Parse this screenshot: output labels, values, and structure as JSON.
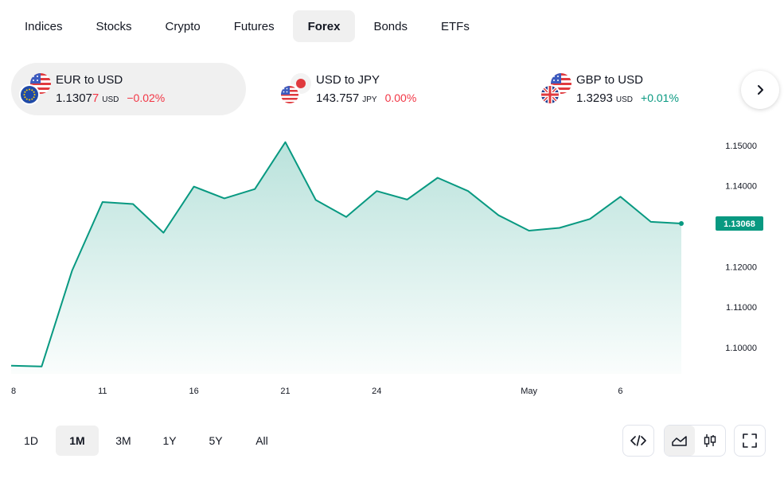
{
  "tabs": [
    {
      "label": "Indices",
      "active": false
    },
    {
      "label": "Stocks",
      "active": false
    },
    {
      "label": "Crypto",
      "active": false
    },
    {
      "label": "Futures",
      "active": false
    },
    {
      "label": "Forex",
      "active": true
    },
    {
      "label": "Bonds",
      "active": false
    },
    {
      "label": "ETFs",
      "active": false
    }
  ],
  "tickers": [
    {
      "name": "EUR to USD",
      "price_main": "1.1307",
      "price_last_digit": "7",
      "unit": "USD",
      "change": "−0.02%",
      "direction": "down",
      "base_flag": "eu-flag-icon",
      "quote_flag": "us-flag-icon"
    },
    {
      "name": "USD to JPY",
      "price_main": "143.757",
      "price_last_digit": "",
      "unit": "JPY",
      "change": "0.00%",
      "direction": "down",
      "base_flag": "us-flag-icon",
      "quote_flag": "jp-flag-icon"
    },
    {
      "name": "GBP to USD",
      "price_main": "1.3293",
      "price_last_digit": "",
      "unit": "USD",
      "change": "+0.01%",
      "direction": "up",
      "base_flag": "uk-flag-icon",
      "quote_flag": "us-flag-icon"
    }
  ],
  "next_icon": "chevron-right-icon",
  "chart_data": {
    "type": "area",
    "x": [
      "Apr 8",
      "Apr 9",
      "Apr 10",
      "Apr 11",
      "Apr 14",
      "Apr 15",
      "Apr 16",
      "Apr 17",
      "Apr 18",
      "Apr 21",
      "Apr 22",
      "Apr 23",
      "Apr 24",
      "Apr 25",
      "Apr 28",
      "Apr 29",
      "Apr 30",
      "May 1",
      "May 2",
      "May 5",
      "May 6",
      "May 7",
      "May 8"
    ],
    "values": [
      1.0955,
      1.0953,
      1.119,
      1.136,
      1.1355,
      1.1284,
      1.1398,
      1.1369,
      1.1392,
      1.1508,
      1.1365,
      1.1323,
      1.1387,
      1.1366,
      1.142,
      1.1387,
      1.1327,
      1.1289,
      1.1296,
      1.1318,
      1.1373,
      1.1311,
      1.13068
    ],
    "x_tick_labels": [
      "8",
      "11",
      "16",
      "21",
      "24",
      "May",
      "6"
    ],
    "x_tick_index": [
      0,
      3,
      6,
      9,
      12,
      17,
      20
    ],
    "y_ticks": [
      "1.15000",
      "1.14000",
      "1.12000",
      "1.11000",
      "1.10000"
    ],
    "y_tick_values": [
      1.15,
      1.14,
      1.12,
      1.11,
      1.1
    ],
    "ylim": [
      1.0935,
      1.1535
    ],
    "last_price_label": "1.13068",
    "line_color": "#089981",
    "fill_color": "#089981",
    "grid": false
  },
  "ranges": [
    {
      "label": "1D",
      "active": false
    },
    {
      "label": "1M",
      "active": true
    },
    {
      "label": "3M",
      "active": false
    },
    {
      "label": "1Y",
      "active": false
    },
    {
      "label": "5Y",
      "active": false
    },
    {
      "label": "All",
      "active": false
    }
  ],
  "tools": {
    "embed_icon": "code-icon",
    "area_icon": "area-chart-icon",
    "candle_icon": "candlestick-icon",
    "fullscreen_icon": "fullscreen-icon",
    "active_chart_style": "area"
  }
}
